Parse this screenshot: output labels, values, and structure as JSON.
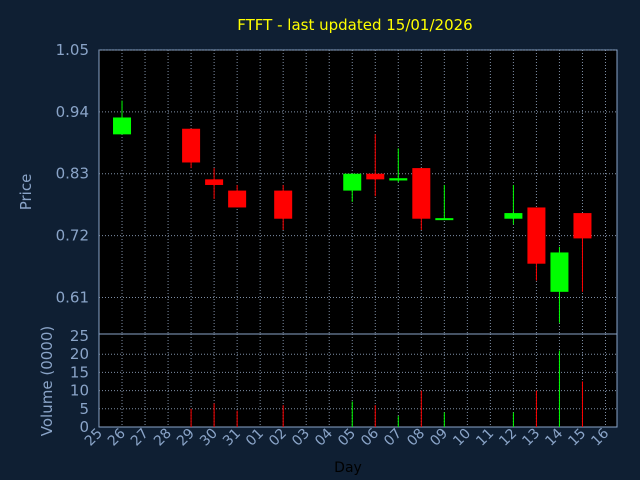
{
  "chart_data": {
    "type": "candlestick",
    "title": "FTFT - last updated 15/01/2026",
    "price_axis": {
      "label": "Price",
      "ticks": [
        "1.05",
        "0.94",
        "0.83",
        "0.72",
        "0.61"
      ],
      "tick_values": [
        1.05,
        0.94,
        0.83,
        0.72,
        0.61
      ],
      "range": [
        0.545,
        1.05
      ],
      "grid": true
    },
    "volume_axis": {
      "label": "Volume (0000)",
      "ticks": [
        "25",
        "20",
        "15",
        "10",
        "5",
        "0"
      ],
      "tick_values": [
        25,
        20,
        15,
        10,
        5,
        0
      ],
      "range": [
        0,
        25
      ],
      "grid": true
    },
    "x_axis": {
      "label": "Day",
      "labels": [
        "25",
        "26",
        "27",
        "28",
        "29",
        "30",
        "31",
        "01",
        "02",
        "03",
        "04",
        "05",
        "06",
        "07",
        "08",
        "09",
        "10",
        "11",
        "12",
        "13",
        "14",
        "15",
        "16"
      ]
    },
    "candles": [
      {
        "day": "26",
        "open": 0.9,
        "close": 0.93,
        "high": 0.96,
        "low": 0.9,
        "volume": 0
      },
      {
        "day": "29",
        "open": 0.91,
        "close": 0.85,
        "high": 0.91,
        "low": 0.84,
        "volume": 5
      },
      {
        "day": "30",
        "open": 0.82,
        "close": 0.81,
        "high": 0.84,
        "low": 0.785,
        "volume": 6.5
      },
      {
        "day": "31",
        "open": 0.8,
        "close": 0.77,
        "high": 0.81,
        "low": 0.77,
        "volume": 4.5
      },
      {
        "day": "02",
        "open": 0.8,
        "close": 0.75,
        "high": 0.81,
        "low": 0.73,
        "volume": 6
      },
      {
        "day": "05",
        "open": 0.8,
        "close": 0.83,
        "high": 0.83,
        "low": 0.78,
        "volume": 7
      },
      {
        "day": "06",
        "open": 0.83,
        "close": 0.82,
        "high": 0.9,
        "low": 0.79,
        "volume": 6
      },
      {
        "day": "07",
        "open": 0.818,
        "close": 0.822,
        "high": 0.875,
        "low": 0.815,
        "volume": 3
      },
      {
        "day": "08",
        "open": 0.84,
        "close": 0.75,
        "high": 0.84,
        "low": 0.73,
        "volume": 10
      },
      {
        "day": "09",
        "open": 0.749,
        "close": 0.751,
        "high": 0.81,
        "low": 0.748,
        "volume": 4
      },
      {
        "day": "12",
        "open": 0.75,
        "close": 0.76,
        "high": 0.81,
        "low": 0.74,
        "volume": 4
      },
      {
        "day": "13",
        "open": 0.77,
        "close": 0.67,
        "high": 0.77,
        "low": 0.64,
        "volume": 10
      },
      {
        "day": "14",
        "open": 0.62,
        "close": 0.69,
        "high": 0.7,
        "low": 0.565,
        "volume": 21
      },
      {
        "day": "15",
        "open": 0.76,
        "close": 0.715,
        "high": 0.76,
        "low": 0.62,
        "volume": 12.5
      }
    ]
  },
  "colors": {
    "background": "#0f1f33",
    "plot_background": "#000000",
    "up": "#00ff00",
    "down": "#ff0000",
    "grid": "#7f8fa6",
    "title": "#ffff00",
    "text": "#8aa4c8"
  }
}
